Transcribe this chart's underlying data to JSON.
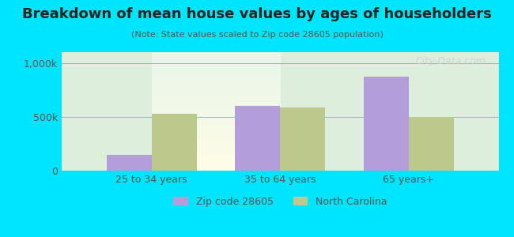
{
  "title": "Breakdown of mean house values by ages of householders",
  "subtitle": "(Note: State values scaled to Zip code 28605 population)",
  "categories": [
    "25 to 34 years",
    "35 to 64 years",
    "65 years+"
  ],
  "zip_values": [
    150000,
    600000,
    875000
  ],
  "state_values": [
    530000,
    590000,
    500000
  ],
  "zip_color": "#b39ddb",
  "state_color": "#bdc88c",
  "background_outer": "#00e5ff",
  "background_inner_top": "#e8f5e9",
  "background_inner_bottom": "#fffde7",
  "yticks": [
    0,
    500000,
    1000000
  ],
  "ytick_labels": [
    "0",
    "500k",
    "1,000k"
  ],
  "ylim": [
    0,
    1100000
  ],
  "legend_zip_label": "Zip code 28605",
  "legend_state_label": "North Carolina",
  "bar_width": 0.35,
  "figsize": [
    6.5,
    3.0
  ],
  "dpi": 100
}
